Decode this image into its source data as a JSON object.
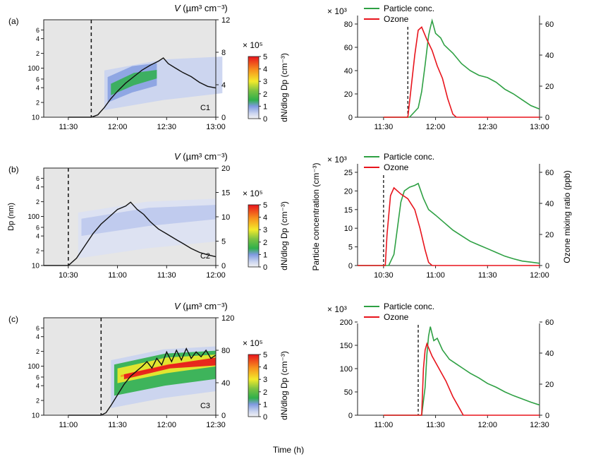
{
  "figure": {
    "xlabel": "Time (h)",
    "volume_label": "V (µm³ cm⁻³)",
    "volume_label_V": "V",
    "volume_label_rest": "(µm³ cm⁻³)",
    "dp_label": "Dp (nm)",
    "colorbar_label": "dN/dlog Dp (cm⁻³)",
    "colorbar_multiplier": "× 10⁵",
    "particle_axis_label": "Particle concentration (cm⁻³)",
    "ozone_axis_label": "Ozone mixing ratio (ppb)",
    "legend": [
      "Particle conc.",
      "Ozone"
    ],
    "particle_multiplier": "× 10³"
  },
  "panels": [
    {
      "label": "(a)",
      "case": "C1",
      "time_ticks": [
        "11:30",
        "12:00",
        "12:30",
        "13:00"
      ],
      "dashed_time": "11:44",
      "volume": {
        "ylim": [
          0,
          12
        ],
        "ticks": [
          "0",
          "4",
          "8",
          "12"
        ],
        "points": [
          [
            "11:30",
            0
          ],
          [
            "11:44",
            0
          ],
          [
            "11:48",
            0.3
          ],
          [
            "11:52",
            1.2
          ],
          [
            "11:56",
            2.3
          ],
          [
            "12:00",
            3.2
          ],
          [
            "12:05",
            4.2
          ],
          [
            "12:10",
            5.0
          ],
          [
            "12:15",
            5.8
          ],
          [
            "12:20",
            6.4
          ],
          [
            "12:25",
            6.9
          ],
          [
            "12:28",
            7.3
          ],
          [
            "12:31",
            6.6
          ],
          [
            "12:35",
            6.1
          ],
          [
            "12:40",
            5.5
          ],
          [
            "12:45",
            5.0
          ],
          [
            "12:50",
            4.3
          ],
          [
            "12:55",
            3.8
          ],
          [
            "13:00",
            3.6
          ]
        ]
      },
      "dp_ticks": [
        "10",
        "2",
        "4",
        "6",
        "100",
        "2",
        "4",
        "6"
      ],
      "colorbar_ticks": [
        "0",
        "1",
        "2",
        "3",
        "4",
        "5"
      ],
      "particle": {
        "ylim": [
          0,
          80
        ],
        "ticks": [
          "0",
          "20",
          "40",
          "60",
          "80"
        ],
        "points": [
          [
            "11:30",
            0
          ],
          [
            "11:45",
            0
          ],
          [
            "11:50",
            8
          ],
          [
            "11:52",
            22
          ],
          [
            "11:54",
            45
          ],
          [
            "11:56",
            70
          ],
          [
            "11:57",
            77
          ],
          [
            "11:58",
            83
          ],
          [
            "12:00",
            72
          ],
          [
            "12:03",
            68
          ],
          [
            "12:05",
            62
          ],
          [
            "12:10",
            55
          ],
          [
            "12:15",
            46
          ],
          [
            "12:20",
            40
          ],
          [
            "12:25",
            36
          ],
          [
            "12:30",
            34
          ],
          [
            "12:35",
            30
          ],
          [
            "12:40",
            24
          ],
          [
            "12:45",
            20
          ],
          [
            "12:50",
            15
          ],
          [
            "12:55",
            10
          ],
          [
            "13:00",
            7
          ]
        ]
      },
      "ozone": {
        "ylim": [
          0,
          60
        ],
        "ticks": [
          "0",
          "20",
          "40",
          "60"
        ],
        "points": [
          [
            "11:30",
            0
          ],
          [
            "11:44",
            0
          ],
          [
            "11:46",
            20
          ],
          [
            "11:48",
            40
          ],
          [
            "11:50",
            56
          ],
          [
            "11:52",
            58
          ],
          [
            "11:55",
            50
          ],
          [
            "11:58",
            43
          ],
          [
            "12:01",
            33
          ],
          [
            "12:04",
            25
          ],
          [
            "12:07",
            12
          ],
          [
            "12:10",
            2
          ],
          [
            "12:12",
            0
          ],
          [
            "13:00",
            0
          ]
        ]
      }
    },
    {
      "label": "(b)",
      "case": "C2",
      "time_ticks": [
        "10:30",
        "11:00",
        "11:30",
        "12:00"
      ],
      "dashed_time": "10:30",
      "volume": {
        "ylim": [
          0,
          20
        ],
        "ticks": [
          "0",
          "5",
          "10",
          "15",
          "20"
        ],
        "points": [
          [
            "10:15",
            0
          ],
          [
            "10:30",
            0
          ],
          [
            "10:35",
            1.5
          ],
          [
            "10:40",
            4.0
          ],
          [
            "10:45",
            6.5
          ],
          [
            "10:50",
            8.5
          ],
          [
            "10:55",
            10.0
          ],
          [
            "11:00",
            11.5
          ],
          [
            "11:05",
            12.2
          ],
          [
            "11:08",
            13.0
          ],
          [
            "11:12",
            11.5
          ],
          [
            "11:16",
            10.5
          ],
          [
            "11:20",
            9.0
          ],
          [
            "11:25",
            7.5
          ],
          [
            "11:30",
            6.5
          ],
          [
            "11:35",
            5.5
          ],
          [
            "11:40",
            4.5
          ],
          [
            "11:45",
            3.5
          ],
          [
            "11:50",
            2.7
          ],
          [
            "11:55",
            2.2
          ],
          [
            "12:00",
            1.8
          ]
        ]
      },
      "dp_ticks": [
        "10",
        "2",
        "4",
        "6",
        "100",
        "2",
        "4",
        "6"
      ],
      "colorbar_ticks": [
        "0",
        "1",
        "2",
        "3",
        "4",
        "5"
      ],
      "particle": {
        "ylim": [
          0,
          25
        ],
        "ticks": [
          "0",
          "5",
          "10",
          "15",
          "20",
          "25"
        ],
        "points": [
          [
            "10:15",
            0
          ],
          [
            "10:33",
            0
          ],
          [
            "10:36",
            3
          ],
          [
            "10:38",
            10
          ],
          [
            "10:40",
            17
          ],
          [
            "10:42",
            20
          ],
          [
            "10:45",
            21
          ],
          [
            "10:48",
            21.5
          ],
          [
            "10:50",
            22
          ],
          [
            "10:53",
            18
          ],
          [
            "10:56",
            15
          ],
          [
            "11:00",
            13.5
          ],
          [
            "11:05",
            11.5
          ],
          [
            "11:10",
            9.5
          ],
          [
            "11:15",
            8
          ],
          [
            "11:20",
            6.5
          ],
          [
            "11:25",
            5.5
          ],
          [
            "11:30",
            4.5
          ],
          [
            "11:35",
            3.5
          ],
          [
            "11:40",
            2.5
          ],
          [
            "11:45",
            1.8
          ],
          [
            "11:50",
            1.2
          ],
          [
            "11:55",
            0.9
          ],
          [
            "12:00",
            0.6
          ]
        ]
      },
      "ozone": {
        "ylim": [
          0,
          60
        ],
        "ticks": [
          "0",
          "20",
          "40",
          "60"
        ],
        "points": [
          [
            "10:15",
            0
          ],
          [
            "10:31",
            0
          ],
          [
            "10:32",
            20
          ],
          [
            "10:34",
            45
          ],
          [
            "10:36",
            50
          ],
          [
            "10:40",
            46
          ],
          [
            "10:44",
            43
          ],
          [
            "10:48",
            36
          ],
          [
            "10:51",
            24
          ],
          [
            "10:54",
            10
          ],
          [
            "10:56",
            2
          ],
          [
            "10:58",
            0
          ],
          [
            "12:00",
            0
          ]
        ]
      }
    },
    {
      "label": "(c)",
      "case": "C3",
      "time_ticks": [
        "11:00",
        "11:30",
        "12:00",
        "12:30"
      ],
      "dashed_time": "11:20",
      "volume": {
        "ylim": [
          0,
          120
        ],
        "ticks": [
          "0",
          "40",
          "80",
          "120"
        ],
        "points": [
          [
            "11:00",
            0
          ],
          [
            "11:20",
            0
          ],
          [
            "11:23",
            3
          ],
          [
            "11:26",
            12
          ],
          [
            "11:30",
            25
          ],
          [
            "11:34",
            38
          ],
          [
            "11:38",
            48
          ],
          [
            "11:42",
            55
          ],
          [
            "11:45",
            60
          ],
          [
            "11:48",
            66
          ],
          [
            "11:51",
            58
          ],
          [
            "11:54",
            70
          ],
          [
            "11:57",
            62
          ],
          [
            "12:00",
            78
          ],
          [
            "12:03",
            66
          ],
          [
            "12:06",
            80
          ],
          [
            "12:09",
            68
          ],
          [
            "12:12",
            82
          ],
          [
            "12:15",
            70
          ],
          [
            "12:18",
            78
          ],
          [
            "12:21",
            72
          ],
          [
            "12:24",
            80
          ],
          [
            "12:27",
            70
          ],
          [
            "12:30",
            74
          ]
        ]
      },
      "dp_ticks": [
        "10",
        "2",
        "4",
        "6",
        "100",
        "2",
        "4",
        "6"
      ],
      "colorbar_ticks": [
        "0",
        "1",
        "2",
        "3",
        "4",
        "5"
      ],
      "particle": {
        "ylim": [
          0,
          200
        ],
        "ticks": [
          "0",
          "50",
          "100",
          "150",
          "200"
        ],
        "points": [
          [
            "11:00",
            0
          ],
          [
            "11:22",
            0
          ],
          [
            "11:24",
            60
          ],
          [
            "11:25",
            130
          ],
          [
            "11:26",
            170
          ],
          [
            "11:27",
            190
          ],
          [
            "11:29",
            160
          ],
          [
            "11:31",
            165
          ],
          [
            "11:34",
            140
          ],
          [
            "11:38",
            120
          ],
          [
            "11:42",
            110
          ],
          [
            "11:46",
            100
          ],
          [
            "11:50",
            90
          ],
          [
            "11:55",
            80
          ],
          [
            "12:00",
            68
          ],
          [
            "12:05",
            60
          ],
          [
            "12:10",
            50
          ],
          [
            "12:15",
            42
          ],
          [
            "12:20",
            35
          ],
          [
            "12:25",
            28
          ],
          [
            "12:30",
            22
          ]
        ]
      },
      "ozone": {
        "ylim": [
          0,
          60
        ],
        "ticks": [
          "0",
          "20",
          "40",
          "60"
        ],
        "points": [
          [
            "11:00",
            0
          ],
          [
            "11:22",
            0
          ],
          [
            "11:23",
            30
          ],
          [
            "11:24",
            42
          ],
          [
            "11:25",
            46
          ],
          [
            "11:28",
            38
          ],
          [
            "11:32",
            30
          ],
          [
            "11:36",
            22
          ],
          [
            "11:40",
            12
          ],
          [
            "11:44",
            4
          ],
          [
            "11:46",
            0
          ],
          [
            "12:30",
            0
          ]
        ]
      }
    }
  ]
}
